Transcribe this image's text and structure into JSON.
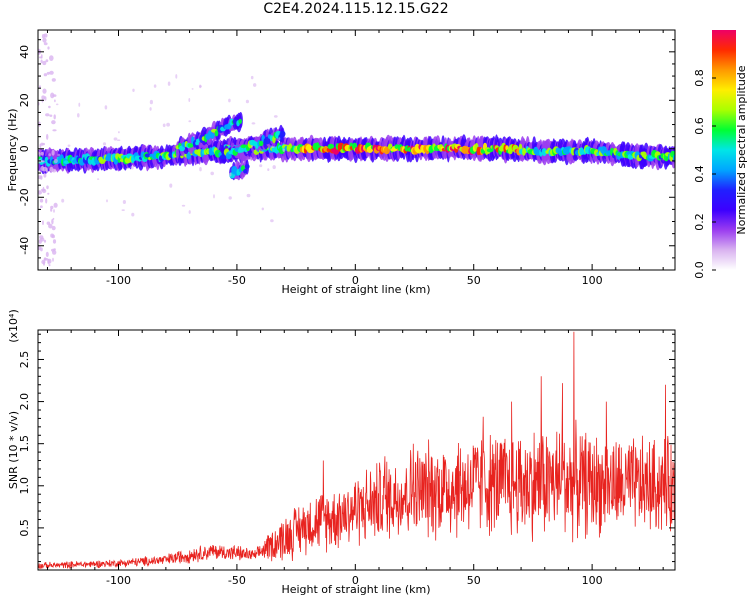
{
  "title": "C2E4.2024.115.12.15.G22",
  "colors": {
    "snr_line": "#e8231f",
    "colormap": [
      "#ffffff",
      "#d9b3f0",
      "#9a3cf0",
      "#3c00ff",
      "#2020ff",
      "#00a6ff",
      "#00e6e6",
      "#00ff33",
      "#aaff00",
      "#ffee00",
      "#ff9900",
      "#ff2a00",
      "#ee0066"
    ]
  },
  "chart_data": [
    {
      "type": "heatmap",
      "name": "spectrogram",
      "xlabel": "Height of straight line (km)",
      "ylabel": "Frequency (Hz)",
      "xlim": [
        -134,
        135
      ],
      "ylim": [
        -50,
        49
      ],
      "xticks": [
        -100,
        -50,
        0,
        50,
        100
      ],
      "yticks": [
        -40,
        -20,
        0,
        20,
        40
      ],
      "colorbar": {
        "label": "Normalized spectral amplitude",
        "range": [
          0,
          1
        ],
        "ticks": [
          "0.0",
          "0.2",
          "0.4",
          "0.6",
          "0.8"
        ]
      },
      "ridges": [
        {
          "x": [
            -134,
            -100,
            -80,
            -60,
            -40,
            -20,
            0,
            20,
            40,
            60,
            80,
            100,
            120,
            135
          ],
          "y": [
            -5,
            -4,
            -3,
            -1,
            0,
            0,
            0,
            0,
            0,
            0,
            -1,
            -1,
            -3,
            -3
          ]
        },
        {
          "x": [
            -75,
            -65,
            -55,
            -48
          ],
          "y": [
            0,
            4,
            9,
            12
          ]
        },
        {
          "x": [
            -58,
            -50,
            -40,
            -30
          ],
          "y": [
            -3,
            -1,
            3,
            6
          ]
        },
        {
          "x": [
            -52,
            -45
          ],
          "y": [
            -10,
            -8
          ]
        }
      ]
    },
    {
      "type": "line",
      "name": "snr",
      "xlabel": "Height of straight line (km)",
      "ylabel": "SNR (10 * v/v)",
      "ylabel_scale": "(x10⁴)",
      "xlim": [
        -134,
        135
      ],
      "ylim": [
        0,
        2.85
      ],
      "xticks": [
        -100,
        -50,
        0,
        50,
        100
      ],
      "yticks": [
        "0.5",
        "1.0",
        "1.5",
        "2.0",
        "2.5"
      ],
      "envelope": {
        "x": [
          -134,
          -100,
          -80,
          -70,
          -60,
          -50,
          -42,
          -38,
          -30,
          -20,
          -10,
          0,
          10,
          20,
          30,
          40,
          50,
          60,
          70,
          80,
          90,
          100,
          110,
          120,
          135
        ],
        "mean": [
          0.05,
          0.08,
          0.12,
          0.18,
          0.22,
          0.2,
          0.17,
          0.26,
          0.38,
          0.55,
          0.62,
          0.72,
          0.82,
          0.9,
          0.95,
          0.98,
          1.02,
          1.02,
          1.03,
          1.05,
          1.05,
          1.02,
          1.0,
          1.0,
          1.0
        ],
        "amp": [
          0.04,
          0.05,
          0.07,
          0.1,
          0.1,
          0.1,
          0.07,
          0.15,
          0.3,
          0.35,
          0.4,
          0.45,
          0.5,
          0.55,
          0.6,
          0.65,
          0.65,
          0.65,
          0.7,
          0.7,
          0.7,
          0.65,
          0.6,
          0.6,
          0.6
        ]
      },
      "peaks": [
        {
          "x": 92.3,
          "y": 2.83
        },
        {
          "x": 78.5,
          "y": 2.3
        },
        {
          "x": 87.5,
          "y": 2.22
        },
        {
          "x": 131,
          "y": 2.2
        },
        {
          "x": 66,
          "y": 2.0
        },
        {
          "x": 106,
          "y": 2.0
        },
        {
          "x": 54,
          "y": 1.82
        },
        {
          "x": 24.5,
          "y": 1.5
        },
        {
          "x": 12.5,
          "y": 1.35
        },
        {
          "x": -13.5,
          "y": 1.3
        }
      ]
    }
  ]
}
